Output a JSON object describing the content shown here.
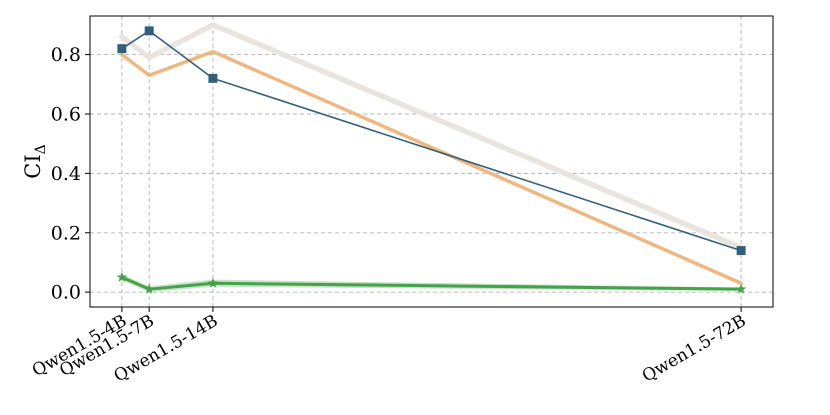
{
  "chart_data": {
    "type": "line",
    "x_labels": [
      "Qwen1.5-4B",
      "Qwen1.5-7B",
      "Qwen1.5-14B",
      "Qwen1.5-72B"
    ],
    "x_values": [
      4,
      7,
      14,
      72
    ],
    "xlim": [
      0.5,
      75.5
    ],
    "ylim": [
      -0.05,
      0.93
    ],
    "yticks": [
      0.0,
      0.2,
      0.4,
      0.6,
      0.8
    ],
    "ytick_labels": [
      "0.0",
      "0.2",
      "0.4",
      "0.6",
      "0.8"
    ],
    "ylabel": "CI",
    "ylabel_sub": "Δ",
    "grid": true,
    "series": [
      {
        "values": [
          0.86,
          0.79,
          0.9,
          0.15
        ],
        "color": "#e8e5e0",
        "marker": "none"
      },
      {
        "values": [
          0.8,
          0.73,
          0.81,
          0.03
        ],
        "color": "#efb77f",
        "marker": "none"
      },
      {
        "values": [
          0.82,
          0.88,
          0.72,
          0.14
        ],
        "color": "#32607a",
        "marker": "square"
      },
      {
        "values": [
          0.05,
          0.01,
          0.03,
          0.01
        ],
        "color": "#44a348",
        "marker": "star",
        "band": [
          0.01,
          0.01,
          0.012,
          0.006
        ]
      }
    ]
  }
}
